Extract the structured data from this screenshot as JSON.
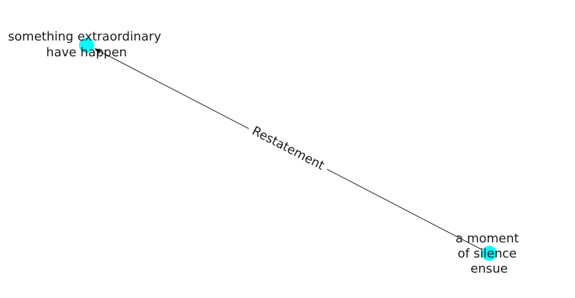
{
  "graph": {
    "nodes": [
      {
        "id": "source",
        "label_lines": [
          "something extraordinary",
          "have happen"
        ],
        "color": "#00ffff"
      },
      {
        "id": "target",
        "label_lines": [
          "a moment",
          "of silence",
          "ensue"
        ],
        "color": "#00ffff"
      }
    ],
    "edges": [
      {
        "from": "target",
        "to": "source",
        "label": "Restatement",
        "color": "#1a1a1a",
        "directed": true
      }
    ]
  }
}
